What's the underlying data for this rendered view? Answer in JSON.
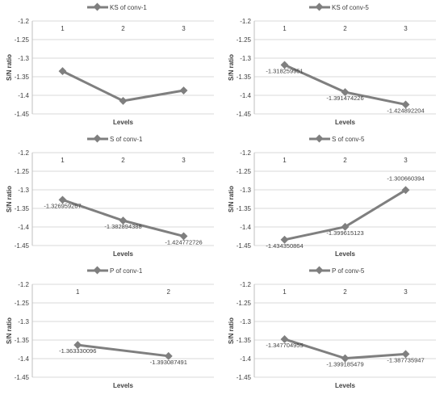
{
  "chart_data": [
    {
      "type": "line",
      "legend": "KS of conv-1",
      "legend_position": "top",
      "ylabel": "S/N ratio",
      "xlabel": "Levels",
      "categories": [
        "1",
        "2",
        "3"
      ],
      "values": [
        -1.335,
        -1.415,
        -1.387
      ],
      "data_labels": [],
      "ylim": [
        -1.45,
        -1.2
      ],
      "yticks": [
        "-1.2",
        "-1.25",
        "-1.3",
        "-1.35",
        "-1.4",
        "-1.45"
      ],
      "grid": true,
      "color": "#7f7f7f"
    },
    {
      "type": "line",
      "legend": "KS of conv-5",
      "legend_position": "top",
      "ylabel": "S/N ratio",
      "xlabel": "Levels",
      "categories": [
        "1",
        "2",
        "3"
      ],
      "values": [
        -1.318259951,
        -1.391474226,
        -1.424892204
      ],
      "data_labels": [
        "-1.318259951",
        "-1.391474226",
        "-1.424892204"
      ],
      "ylim": [
        -1.45,
        -1.2
      ],
      "yticks": [
        "-1.2",
        "-1.25",
        "-1.3",
        "-1.35",
        "-1.4",
        "-1.45"
      ],
      "grid": true,
      "color": "#7f7f7f"
    },
    {
      "type": "line",
      "legend": "S of conv-1",
      "legend_position": "top",
      "ylabel": "S/N ratio",
      "xlabel": "Levels",
      "categories": [
        "1",
        "2",
        "3"
      ],
      "values": [
        -1.326959267,
        -1.382894388,
        -1.424772726
      ],
      "data_labels": [
        "-1.326959267",
        "-1.382894388",
        "-1.424772726"
      ],
      "ylim": [
        -1.45,
        -1.2
      ],
      "yticks": [
        "-1.2",
        "-1.25",
        "-1.3",
        "-1.35",
        "-1.4",
        "-1.45"
      ],
      "grid": true,
      "color": "#7f7f7f"
    },
    {
      "type": "line",
      "legend": "S of conv-5",
      "legend_position": "top",
      "ylabel": "S/N ratio",
      "xlabel": "Levels",
      "categories": [
        "1",
        "2",
        "3"
      ],
      "values": [
        -1.434350864,
        -1.399615123,
        -1.300660394
      ],
      "data_labels": [
        "-1.434350864",
        "-1.399615123",
        "-1.300660394"
      ],
      "ylim": [
        -1.45,
        -1.2
      ],
      "yticks": [
        "-1.2",
        "-1.25",
        "-1.3",
        "-1.35",
        "-1.4",
        "-1.45"
      ],
      "grid": true,
      "color": "#7f7f7f"
    },
    {
      "type": "line",
      "legend": "P of conv-1",
      "legend_position": "top",
      "ylabel": "S/N ratio",
      "xlabel": "Levels",
      "categories": [
        "1",
        "2"
      ],
      "values": [
        -1.363330096,
        -1.393087491
      ],
      "data_labels": [
        "-1.363330096",
        "-1.393087491"
      ],
      "ylim": [
        -1.45,
        -1.2
      ],
      "yticks": [
        "-1.2",
        "-1.25",
        "-1.3",
        "-1.35",
        "-1.4",
        "-1.45"
      ],
      "grid": true,
      "color": "#7f7f7f"
    },
    {
      "type": "line",
      "legend": "P of conv-5",
      "legend_position": "top",
      "ylabel": "S/N ratio",
      "xlabel": "Levels",
      "categories": [
        "1",
        "2",
        "3"
      ],
      "values": [
        -1.347704955,
        -1.399185479,
        -1.387735947
      ],
      "data_labels": [
        "-1.347704955",
        "-1.399185479",
        "-1.387735947"
      ],
      "ylim": [
        -1.45,
        -1.2
      ],
      "yticks": [
        "-1.2",
        "-1.25",
        "-1.3",
        "-1.35",
        "-1.4",
        "-1.45"
      ],
      "grid": true,
      "color": "#7f7f7f"
    }
  ]
}
